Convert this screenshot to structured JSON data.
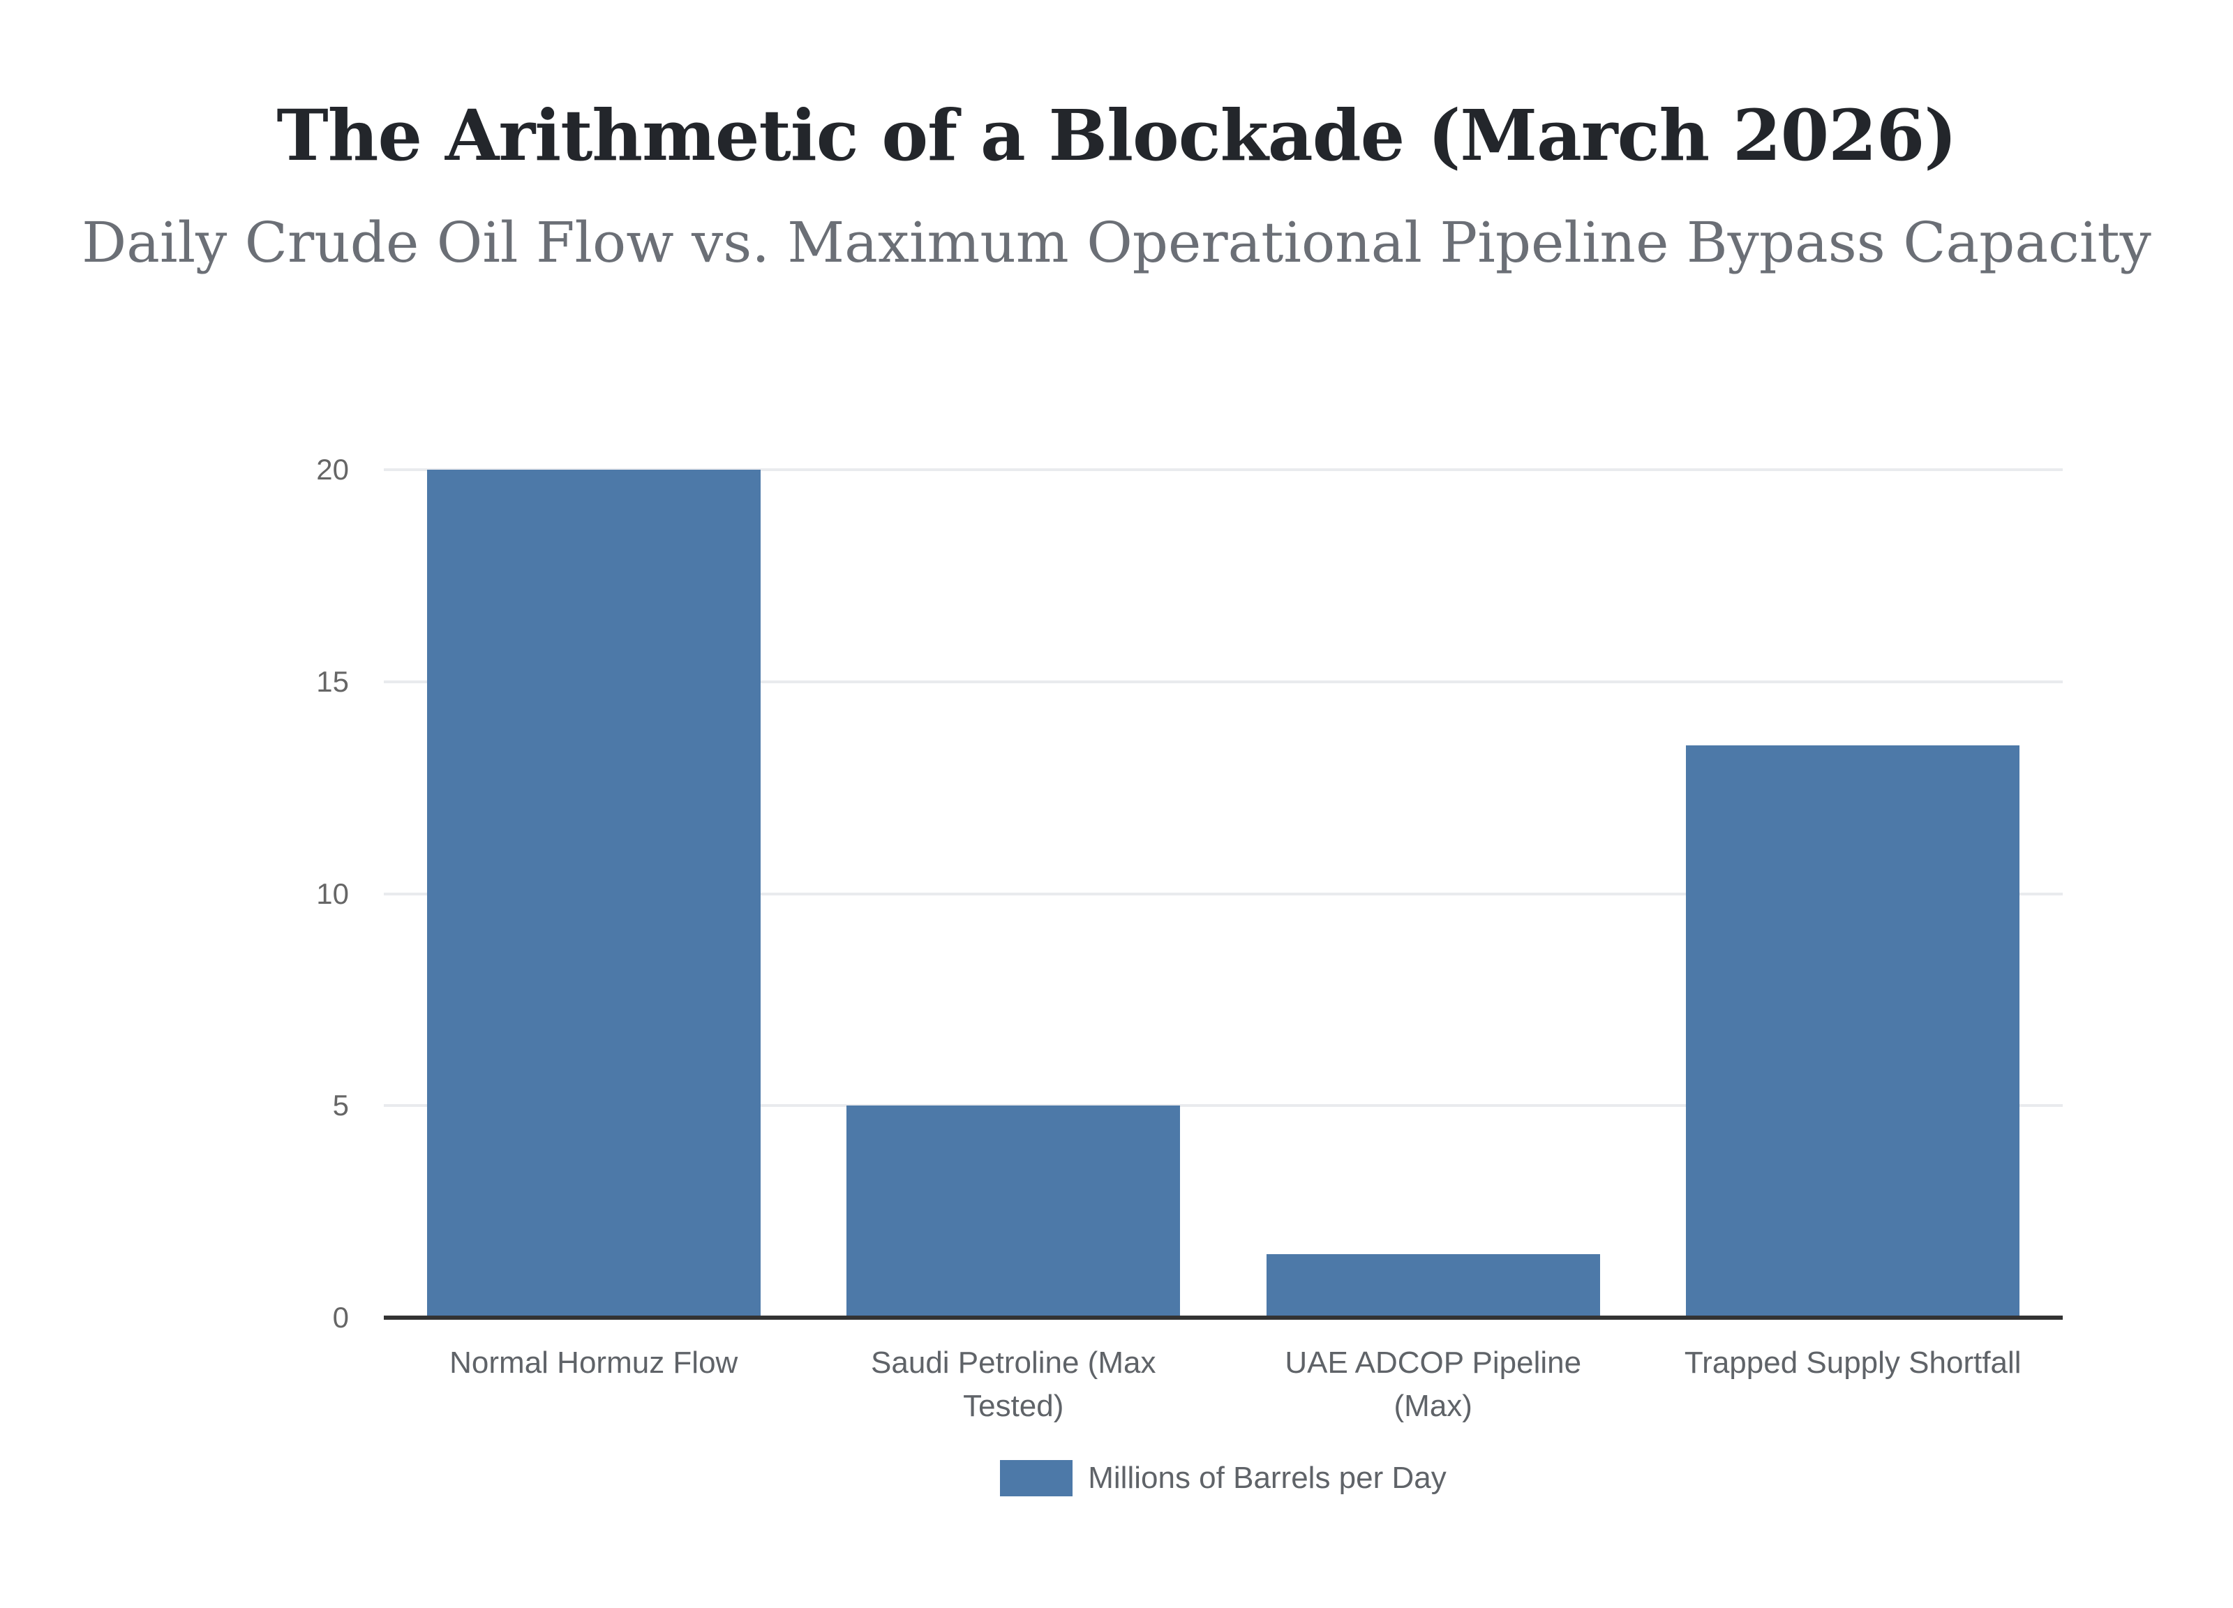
{
  "header": {
    "title": "The Arithmetic of a Blockade (March 2026)",
    "subtitle": "Daily Crude Oil Flow vs. Maximum Operational Pipeline Bypass Capacity"
  },
  "legend": {
    "label": "Millions of Barrels per Day",
    "swatch_color": "#4d79a8"
  },
  "colors": {
    "bar": "#4d79a8",
    "axis_line": "#333333",
    "gridline": "#e9ebee",
    "tick_text": "#666666",
    "label_text": "#5f6368",
    "title_text": "#23262b",
    "subtitle_text": "#6b6f76"
  },
  "chart_data": {
    "type": "bar",
    "title": "The Arithmetic of a Blockade (March 2026)",
    "subtitle": "Daily Crude Oil Flow vs. Maximum Operational Pipeline Bypass Capacity",
    "categories": [
      "Normal Hormuz Flow",
      "Saudi Petroline (Max Tested)",
      "UAE ADCOP Pipeline (Max)",
      "Trapped Supply Shortfall"
    ],
    "category_lines": [
      [
        "Normal Hormuz Flow"
      ],
      [
        "Saudi Petroline (Max",
        "Tested)"
      ],
      [
        "UAE ADCOP Pipeline",
        "(Max)"
      ],
      [
        "Trapped Supply Shortfall"
      ]
    ],
    "series": [
      {
        "name": "Millions of Barrels per Day",
        "values": [
          20,
          5,
          1.5,
          13.5
        ],
        "color": "#4d79a8"
      }
    ],
    "ylabel": "",
    "xlabel": "",
    "ylim": [
      0,
      20
    ],
    "yticks": [
      0,
      5,
      10,
      15,
      20
    ],
    "grid": true,
    "legend_position": "bottom"
  }
}
